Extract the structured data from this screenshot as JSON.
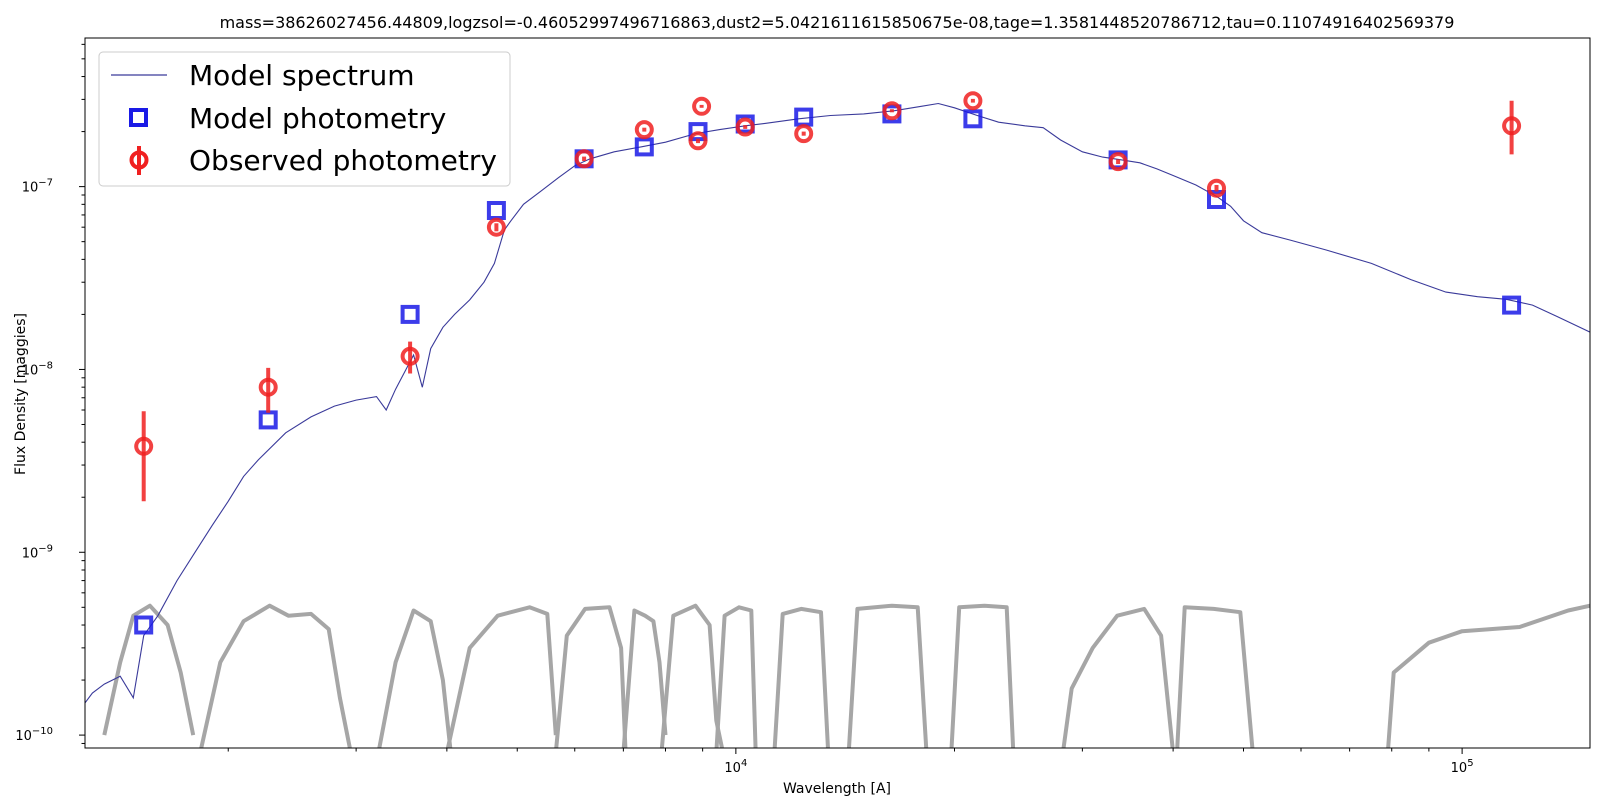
{
  "chart_data": {
    "type": "line",
    "title": "mass=38626027456.44809,logzsol=-0.46052997496716863,dust2=5.0421611615850675e-08,tage=1.3581448520786712,tau=0.11074916402569379",
    "xlabel": "Wavelength [A]",
    "ylabel": "Flux Density [maggies]",
    "x_scale": "log",
    "y_scale": "log",
    "xlim": [
      1270,
      150000
    ],
    "ylim": [
      8.5e-11,
      6.5e-07
    ],
    "grid": false,
    "legend_position": "top-left",
    "x_ticks": [
      {
        "value": 10000,
        "base": "10",
        "exp": "4"
      },
      {
        "value": 100000,
        "base": "10",
        "exp": "5"
      }
    ],
    "y_ticks": [
      {
        "value": 1e-10,
        "base": "10",
        "exp": "−10"
      },
      {
        "value": 1e-09,
        "base": "10",
        "exp": "−9"
      },
      {
        "value": 1e-08,
        "base": "10",
        "exp": "−8"
      },
      {
        "value": 1e-07,
        "base": "10",
        "exp": "−7"
      }
    ],
    "legend": [
      {
        "label": "Model spectrum",
        "marker": "line",
        "color": "#3a3a9a"
      },
      {
        "label": "Model photometry",
        "marker": "square",
        "color": "#1a1ae6"
      },
      {
        "label": "Observed photometry",
        "marker": "circle-errorbar",
        "color": "#f02020"
      }
    ],
    "series": [
      {
        "name": "Model spectrum",
        "kind": "line",
        "color": "#3a3a9a",
        "points": [
          [
            1270,
            1.5e-10
          ],
          [
            1300,
            1.7e-10
          ],
          [
            1350,
            1.9e-10
          ],
          [
            1420,
            2.1e-10
          ],
          [
            1480,
            1.6e-10
          ],
          [
            1530,
            3.5e-10
          ],
          [
            1600,
            4.5e-10
          ],
          [
            1700,
            7e-10
          ],
          [
            1800,
            1e-09
          ],
          [
            1900,
            1.4e-09
          ],
          [
            2000,
            1.9e-09
          ],
          [
            2100,
            2.6e-09
          ],
          [
            2200,
            3.2e-09
          ],
          [
            2400,
            4.5e-09
          ],
          [
            2600,
            5.5e-09
          ],
          [
            2800,
            6.3e-09
          ],
          [
            3000,
            6.8e-09
          ],
          [
            3200,
            7.1e-09
          ],
          [
            3300,
            6e-09
          ],
          [
            3400,
            7.8e-09
          ],
          [
            3600,
            1.2e-08
          ],
          [
            3700,
            8e-09
          ],
          [
            3800,
            1.3e-08
          ],
          [
            3950,
            1.7e-08
          ],
          [
            4100,
            2e-08
          ],
          [
            4300,
            2.4e-08
          ],
          [
            4500,
            3e-08
          ],
          [
            4650,
            3.8e-08
          ],
          [
            4800,
            5.8e-08
          ],
          [
            4900,
            6.5e-08
          ],
          [
            5100,
            8e-08
          ],
          [
            5400,
            9.5e-08
          ],
          [
            5700,
            1.12e-07
          ],
          [
            6000,
            1.3e-07
          ],
          [
            6300,
            1.42e-07
          ],
          [
            6800,
            1.55e-07
          ],
          [
            7400,
            1.65e-07
          ],
          [
            8000,
            1.75e-07
          ],
          [
            8800,
            1.95e-07
          ],
          [
            9500,
            2.05e-07
          ],
          [
            10300,
            2.15e-07
          ],
          [
            11000,
            2.22e-07
          ],
          [
            12200,
            2.35e-07
          ],
          [
            13500,
            2.45e-07
          ],
          [
            15000,
            2.5e-07
          ],
          [
            16500,
            2.6e-07
          ],
          [
            18000,
            2.75e-07
          ],
          [
            19000,
            2.85e-07
          ],
          [
            20000,
            2.7e-07
          ],
          [
            21500,
            2.45e-07
          ],
          [
            23000,
            2.25e-07
          ],
          [
            25000,
            2.15e-07
          ],
          [
            26500,
            2.1e-07
          ],
          [
            28000,
            1.8e-07
          ],
          [
            30000,
            1.55e-07
          ],
          [
            32000,
            1.45e-07
          ],
          [
            34000,
            1.4e-07
          ],
          [
            36000,
            1.35e-07
          ],
          [
            38000,
            1.25e-07
          ],
          [
            40000,
            1.15e-07
          ],
          [
            43000,
            1.02e-07
          ],
          [
            46000,
            8.8e-08
          ],
          [
            48000,
            7.8e-08
          ],
          [
            50000,
            6.5e-08
          ],
          [
            53000,
            5.6e-08
          ],
          [
            58000,
            5.1e-08
          ],
          [
            65000,
            4.5e-08
          ],
          [
            75000,
            3.8e-08
          ],
          [
            85000,
            3.1e-08
          ],
          [
            95000,
            2.65e-08
          ],
          [
            105000,
            2.5e-08
          ],
          [
            115000,
            2.42e-08
          ],
          [
            125000,
            2.25e-08
          ],
          [
            135000,
            1.95e-08
          ],
          [
            150000,
            1.6e-08
          ]
        ]
      },
      {
        "name": "Model photometry",
        "kind": "markers",
        "color": "#1a1ae6",
        "points": [
          [
            1530,
            4e-10
          ],
          [
            2270,
            5.3e-09
          ],
          [
            3560,
            2e-08
          ],
          [
            4680,
            7.4e-08
          ],
          [
            6180,
            1.42e-07
          ],
          [
            7480,
            1.65e-07
          ],
          [
            8870,
            2e-07
          ],
          [
            10300,
            2.2e-07
          ],
          [
            12400,
            2.4e-07
          ],
          [
            16400,
            2.5e-07
          ],
          [
            21200,
            2.35e-07
          ],
          [
            33600,
            1.4e-07
          ],
          [
            45900,
            8.5e-08
          ],
          [
            117000,
            2.25e-08
          ]
        ]
      },
      {
        "name": "Observed photometry",
        "kind": "errorbar",
        "color": "#f02020",
        "points": [
          [
            1530,
            3.8e-09,
            1.9e-09,
            5.9e-09
          ],
          [
            2270,
            8e-09,
            5.8e-09,
            1.02e-08
          ],
          [
            3560,
            1.18e-08,
            9.5e-09,
            1.42e-08
          ],
          [
            4680,
            6e-08,
            5.7e-08,
            6.3e-08
          ],
          [
            6180,
            1.42e-07,
            1.38e-07,
            1.46e-07
          ],
          [
            7480,
            2.05e-07,
            2e-07,
            2.1e-07
          ],
          [
            8870,
            1.78e-07,
            1.73e-07,
            1.83e-07
          ],
          [
            8970,
            2.75e-07,
            2.7e-07,
            2.8e-07
          ],
          [
            10300,
            2.12e-07,
            2.07e-07,
            2.17e-07
          ],
          [
            12400,
            1.95e-07,
            1.9e-07,
            2e-07
          ],
          [
            16400,
            2.6e-07,
            2.55e-07,
            2.65e-07
          ],
          [
            21200,
            2.95e-07,
            2.88e-07,
            3.02e-07
          ],
          [
            33600,
            1.37e-07,
            1.33e-07,
            1.41e-07
          ],
          [
            45900,
            9.8e-08,
            9.4e-08,
            1.02e-07
          ],
          [
            117000,
            2.15e-07,
            1.5e-07,
            2.95e-07
          ]
        ]
      },
      {
        "name": "",
        "kind": "filter-curves",
        "color": "#a6a6a6",
        "curves": [
          [
            [
              1350,
              1e-10
            ],
            [
              1420,
              2.5e-10
            ],
            [
              1480,
              4.5e-10
            ],
            [
              1560,
              5.1e-10
            ],
            [
              1650,
              4e-10
            ],
            [
              1720,
              2.2e-10
            ],
            [
              1790,
              1e-10
            ]
          ],
          [
            [
              1830,
              8e-11
            ],
            [
              1950,
              2.5e-10
            ],
            [
              2100,
              4.2e-10
            ],
            [
              2280,
              5.1e-10
            ],
            [
              2420,
              4.5e-10
            ],
            [
              2600,
              4.6e-10
            ],
            [
              2750,
              3.8e-10
            ],
            [
              2850,
              1.6e-10
            ],
            [
              2950,
              8e-11
            ]
          ],
          [
            [
              3220,
              8e-11
            ],
            [
              3400,
              2.5e-10
            ],
            [
              3600,
              4.8e-10
            ],
            [
              3800,
              4.2e-10
            ],
            [
              3950,
              2e-10
            ],
            [
              4050,
              8e-11
            ]
          ],
          [
            [
              4000,
              8e-11
            ],
            [
              4300,
              3e-10
            ],
            [
              4700,
              4.5e-10
            ],
            [
              5200,
              5e-10
            ],
            [
              5500,
              4.6e-10
            ],
            [
              5650,
              1e-10
            ]
          ],
          [
            [
              5650,
              8e-11
            ],
            [
              5850,
              3.5e-10
            ],
            [
              6200,
              4.9e-10
            ],
            [
              6700,
              5e-10
            ],
            [
              6950,
              3e-10
            ],
            [
              7050,
              8e-11
            ]
          ],
          [
            [
              7000,
              8e-11
            ],
            [
              7250,
              4.8e-10
            ],
            [
              7500,
              4.5e-10
            ],
            [
              7700,
              4.2e-10
            ],
            [
              7850,
              2.5e-10
            ],
            [
              8000,
              1e-10
            ]
          ],
          [
            [
              7900,
              8e-11
            ],
            [
              8200,
              4.5e-10
            ],
            [
              8800,
              5.1e-10
            ],
            [
              9200,
              4e-10
            ],
            [
              9400,
              1.2e-10
            ],
            [
              9600,
              8e-11
            ]
          ],
          [
            [
              9400,
              8e-11
            ],
            [
              9650,
              4.5e-10
            ],
            [
              10100,
              5e-10
            ],
            [
              10500,
              4.8e-10
            ],
            [
              10650,
              8e-11
            ]
          ],
          [
            [
              11300,
              8e-11
            ],
            [
              11600,
              4.6e-10
            ],
            [
              12300,
              4.9e-10
            ],
            [
              13100,
              4.7e-10
            ],
            [
              13400,
              8e-11
            ]
          ],
          [
            [
              14300,
              8e-11
            ],
            [
              14700,
              4.9e-10
            ],
            [
              16400,
              5.1e-10
            ],
            [
              17800,
              5e-10
            ],
            [
              18300,
              8e-11
            ]
          ],
          [
            [
              19800,
              8e-11
            ],
            [
              20300,
              5e-10
            ],
            [
              22000,
              5.1e-10
            ],
            [
              23600,
              5e-10
            ],
            [
              24100,
              8e-11
            ]
          ],
          [
            [
              28200,
              8e-11
            ],
            [
              29000,
              1.8e-10
            ],
            [
              31000,
              3e-10
            ],
            [
              33500,
              4.5e-10
            ],
            [
              36500,
              4.9e-10
            ],
            [
              38500,
              3.5e-10
            ],
            [
              40000,
              8e-11
            ]
          ],
          [
            [
              40500,
              8e-11
            ],
            [
              41500,
              5e-10
            ],
            [
              45500,
              4.9e-10
            ],
            [
              49500,
              4.7e-10
            ],
            [
              51500,
              8e-11
            ]
          ],
          [
            [
              79000,
              8e-11
            ],
            [
              80500,
              2.2e-10
            ],
            [
              90000,
              3.2e-10
            ],
            [
              100000,
              3.7e-10
            ],
            [
              120000,
              3.9e-10
            ],
            [
              140000,
              4.8e-10
            ],
            [
              150000,
              5.1e-10
            ]
          ]
        ]
      }
    ]
  }
}
